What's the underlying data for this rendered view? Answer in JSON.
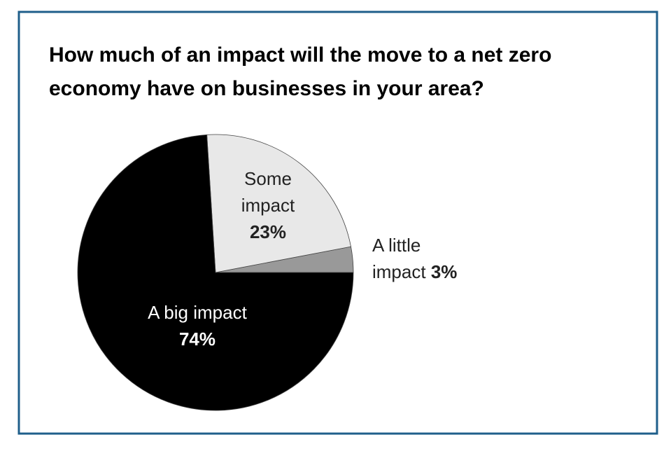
{
  "chart_data": {
    "type": "pie",
    "title": "How much of an impact will the move to a net zero economy have on businesses in your area?",
    "categories": [
      "A little impact",
      "Some impact",
      "A big impact"
    ],
    "values": [
      3,
      23,
      74
    ],
    "value_labels": [
      "3%",
      "23%",
      "74%"
    ],
    "colors": [
      "#999999",
      "#e8e8e8",
      "#000000"
    ]
  }
}
